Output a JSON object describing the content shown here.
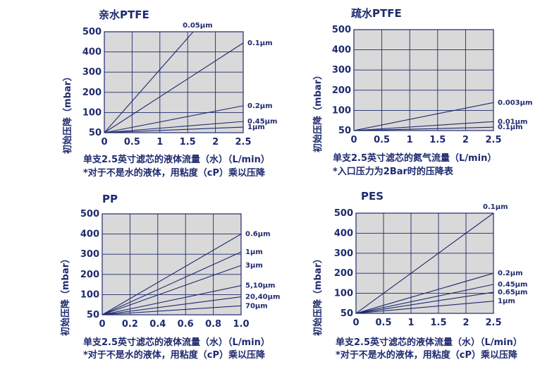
{
  "chart_data": [
    {
      "type": "line",
      "title": "亲水PTFE",
      "ylabel": "初始压降（mbar）",
      "xlabel": "单支2.5英寸滤芯的液体流量（水）（L/min）",
      "note": "*对于不是水的液体，用粘度（cP）乘以压降",
      "xlim": [
        0,
        2.5
      ],
      "ylim": [
        50,
        500
      ],
      "x_ticks": [
        "0",
        "0.5",
        "1",
        "1.5",
        "2",
        "2.5"
      ],
      "y_ticks": [
        "50",
        "100",
        "200",
        "300",
        "400",
        "500"
      ],
      "series": [
        {
          "name": "0.05μm",
          "x": [
            0,
            1.6
          ],
          "y": [
            50,
            500
          ]
        },
        {
          "name": "0.1μm",
          "x": [
            0,
            2.5
          ],
          "y": [
            50,
            450
          ]
        },
        {
          "name": "0.2μm",
          "x": [
            0,
            2.5
          ],
          "y": [
            50,
            170
          ]
        },
        {
          "name": "0.45μm",
          "x": [
            0,
            2.5
          ],
          "y": [
            50,
            100
          ]
        },
        {
          "name": "1μm",
          "x": [
            0,
            2.5
          ],
          "y": [
            50,
            75
          ]
        }
      ]
    },
    {
      "type": "line",
      "title": "疏水PTFE",
      "ylabel": "初始压降（mbar）",
      "xlabel": "单支2.5英寸滤芯的氮气流量（L/min）",
      "note": "*入口压力为2Bar时的压降表",
      "xlim": [
        0,
        2.5
      ],
      "ylim": [
        50,
        500
      ],
      "x_ticks": [
        "0",
        "0.5",
        "1",
        "1.5",
        "2",
        "2.5"
      ],
      "y_ticks": [
        "50",
        "100",
        "200",
        "300",
        "400",
        "500"
      ],
      "series": [
        {
          "name": "0.003μm",
          "x": [
            0,
            2.5
          ],
          "y": [
            50,
            175
          ]
        },
        {
          "name": "0.01μm",
          "x": [
            0,
            2.5
          ],
          "y": [
            50,
            90
          ]
        },
        {
          "name": "0.1μm",
          "x": [
            0,
            2.5
          ],
          "y": [
            50,
            65
          ]
        }
      ]
    },
    {
      "type": "line",
      "title": "PP",
      "ylabel": "初始压降（mbar）",
      "xlabel": "单支2.5英寸滤芯的液体流量（水）（L/min）",
      "note": "*对于不是水的液体，用粘度（cP）乘以压降",
      "xlim": [
        0,
        1.0
      ],
      "ylim": [
        50,
        500
      ],
      "x_ticks": [
        "0",
        "0.2",
        "0.4",
        "0.6",
        "0.8",
        "1.0"
      ],
      "y_ticks": [
        "50",
        "100",
        "200",
        "300",
        "400",
        "500"
      ],
      "series": [
        {
          "name": "0.6μm",
          "x": [
            0,
            1.0
          ],
          "y": [
            50,
            410
          ]
        },
        {
          "name": "1μm",
          "x": [
            0,
            1.0
          ],
          "y": [
            50,
            330
          ]
        },
        {
          "name": "3μm",
          "x": [
            0,
            1.0
          ],
          "y": [
            50,
            270
          ]
        },
        {
          "name": "5,10μm",
          "x": [
            0,
            1.0
          ],
          "y": [
            50,
            180
          ]
        },
        {
          "name": "20,40μm",
          "x": [
            0,
            1.0
          ],
          "y": [
            50,
            130
          ]
        },
        {
          "name": "70μm",
          "x": [
            0,
            1.0
          ],
          "y": [
            50,
            90
          ]
        }
      ]
    },
    {
      "type": "line",
      "title": "PES",
      "ylabel": "初始压降（mbar）",
      "xlabel": "单支2.5英寸滤芯的液体流量（水）（L/min）",
      "note": "*对于不是水的液体，用粘度（cP）乘以压降",
      "xlim": [
        0,
        2.5
      ],
      "ylim": [
        50,
        500
      ],
      "x_ticks": [
        "0",
        "0.5",
        "1",
        "1.5",
        "2",
        "2.5"
      ],
      "y_ticks": [
        "50",
        "100",
        "200",
        "300",
        "400",
        "500"
      ],
      "series": [
        {
          "name": "0.1μm",
          "x": [
            0,
            2.5
          ],
          "y": [
            50,
            500
          ]
        },
        {
          "name": "0.2μm",
          "x": [
            0,
            2.5
          ],
          "y": [
            50,
            230
          ]
        },
        {
          "name": "0.45μm",
          "x": [
            0,
            2.5
          ],
          "y": [
            50,
            180
          ]
        },
        {
          "name": "0.65μm",
          "x": [
            0,
            2.5
          ],
          "y": [
            50,
            145
          ]
        },
        {
          "name": "1μm",
          "x": [
            0,
            2.5
          ],
          "y": [
            50,
            105
          ]
        }
      ]
    }
  ]
}
